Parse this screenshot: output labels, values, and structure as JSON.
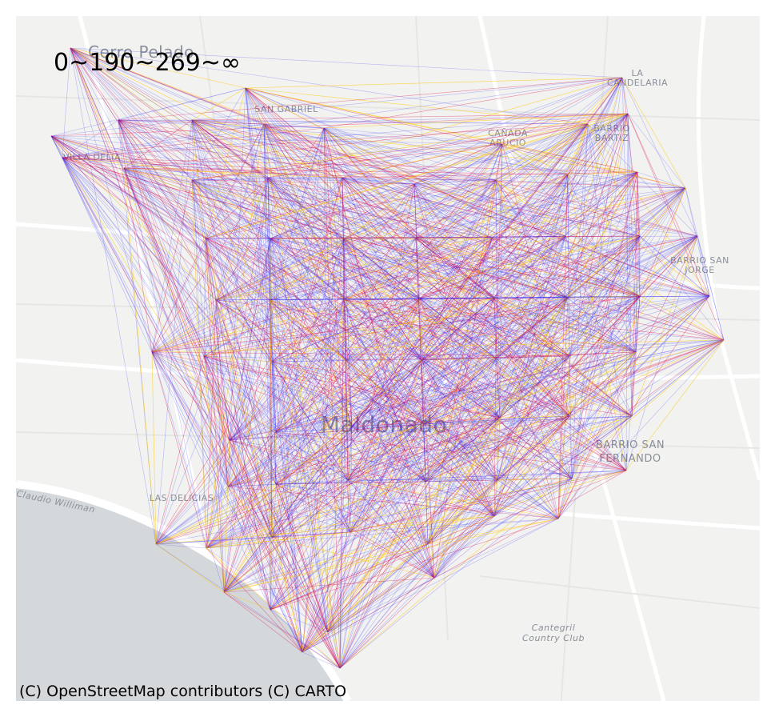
{
  "map": {
    "legend": "0~190~269~∞",
    "attribution": "(C) OpenStreetMap contributors (C) CARTO",
    "labels": [
      "Cerro Pelado",
      "LA",
      "CANDELARIA",
      "SAN GABRIEL",
      "CAÑADA",
      "ARUCIO",
      "BARRIO",
      "BARTIZ",
      "VILLA DELIA",
      "BARRIO SAN",
      "JORGE",
      "Maldonado",
      "BARRIO SAN",
      "FERNANDO",
      "LAS DELICIAS",
      "Claudio Williman",
      "Cantegril",
      "Country Club"
    ]
  }
}
